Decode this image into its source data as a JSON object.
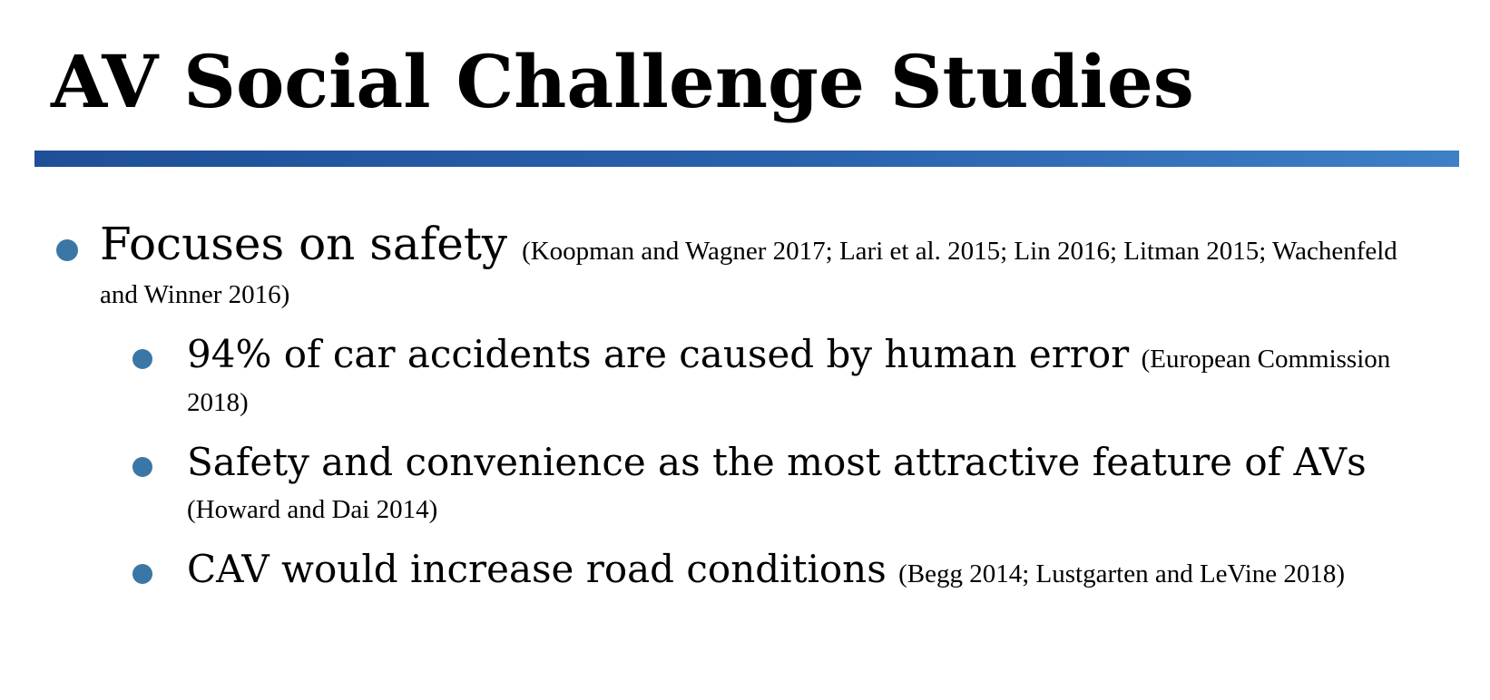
{
  "slide": {
    "title": "AV Social Challenge Studies",
    "accent_color": "#2a62ad",
    "bullet_color": "#3a77a6",
    "items": [
      {
        "text": "Focuses on safety",
        "citation": "(Koopman and Wagner 2017; Lari et al. 2015; Lin 2016; Litman 2015; Wachenfeld and Winner 2016)",
        "subitems": [
          {
            "text": "94% of car accidents are caused by human error",
            "citation": "(European Commission 2018)"
          },
          {
            "text": "Safety and convenience as the most attractive feature of AVs",
            "citation": "(Howard and Dai 2014)"
          },
          {
            "text": "CAV would increase road conditions",
            "citation": "(Begg 2014; Lustgarten and LeVine 2018)"
          }
        ]
      }
    ]
  }
}
